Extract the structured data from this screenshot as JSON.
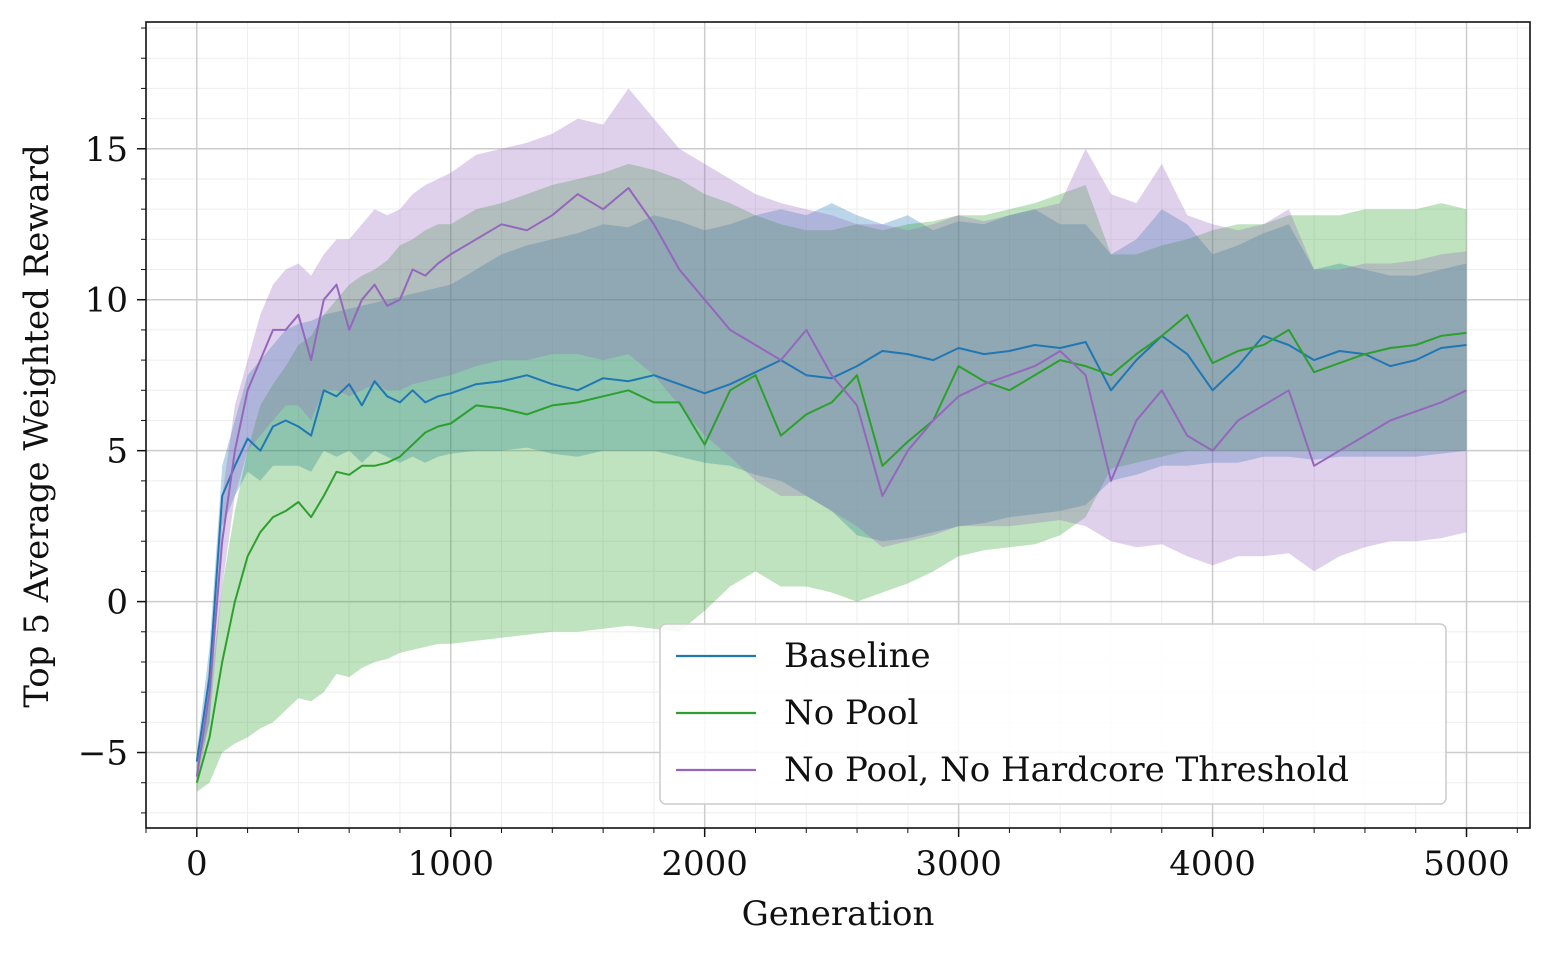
{
  "chart_data": {
    "type": "line",
    "xlabel": "Generation",
    "ylabel": "Top 5 Average Weighted Reward",
    "xlim": [
      -200,
      5250
    ],
    "ylim": [
      -7.5,
      19.2
    ],
    "xticks": [
      0,
      1000,
      2000,
      3000,
      4000,
      5000
    ],
    "xtick_labels": [
      "0",
      "1000",
      "2000",
      "3000",
      "4000",
      "5000"
    ],
    "yticks": [
      -5,
      0,
      5,
      10,
      15
    ],
    "ytick_labels": [
      "−5",
      "0",
      "5",
      "10",
      "15"
    ],
    "grid": true,
    "legend_position": "lower-right",
    "series": [
      {
        "name": "Baseline",
        "color": "#1f77b4",
        "band_color": "#1f77b4",
        "x": [
          0,
          50,
          100,
          150,
          200,
          250,
          300,
          350,
          400,
          450,
          500,
          550,
          600,
          650,
          700,
          750,
          800,
          850,
          900,
          950,
          1000,
          1100,
          1200,
          1300,
          1400,
          1500,
          1600,
          1700,
          1800,
          1900,
          2000,
          2100,
          2200,
          2300,
          2400,
          2500,
          2600,
          2700,
          2800,
          2900,
          3000,
          3100,
          3200,
          3300,
          3400,
          3500,
          3600,
          3700,
          3800,
          3900,
          4000,
          4100,
          4200,
          4300,
          4400,
          4500,
          4600,
          4700,
          4800,
          4900,
          5000
        ],
        "y": [
          -5.3,
          -2.5,
          3.5,
          4.5,
          5.4,
          5.0,
          5.8,
          6.0,
          5.8,
          5.5,
          7.0,
          6.8,
          7.2,
          6.5,
          7.3,
          6.8,
          6.6,
          7.0,
          6.6,
          6.8,
          6.9,
          7.2,
          7.3,
          7.5,
          7.2,
          7.0,
          7.4,
          7.3,
          7.5,
          7.2,
          6.9,
          7.2,
          7.6,
          8.0,
          7.5,
          7.4,
          7.8,
          8.3,
          8.2,
          8.0,
          8.4,
          8.2,
          8.3,
          8.5,
          8.4,
          8.6,
          7.0,
          8.0,
          8.8,
          8.2,
          7.0,
          7.8,
          8.8,
          8.5,
          8.0,
          8.3,
          8.2,
          7.8,
          8.0,
          8.4,
          8.5
        ],
        "upper": [
          -5.0,
          -1.5,
          4.5,
          6.0,
          7.5,
          8.0,
          8.5,
          9.0,
          9.2,
          9.3,
          9.5,
          9.6,
          9.7,
          9.8,
          9.9,
          10.0,
          10.1,
          10.2,
          10.3,
          10.4,
          10.5,
          11.0,
          11.5,
          11.8,
          12.0,
          12.2,
          12.5,
          12.4,
          12.8,
          12.6,
          12.3,
          12.5,
          12.8,
          13.0,
          12.8,
          13.2,
          12.8,
          12.5,
          12.8,
          12.3,
          12.6,
          12.5,
          12.8,
          13.0,
          12.5,
          12.5,
          11.5,
          12.0,
          13.0,
          12.5,
          11.5,
          11.8,
          12.2,
          12.5,
          11.0,
          11.2,
          11.0,
          10.8,
          10.8,
          11.0,
          11.2
        ],
        "lower": [
          -5.6,
          -4.0,
          2.5,
          3.5,
          4.3,
          4.0,
          4.5,
          4.5,
          4.5,
          4.3,
          5.0,
          4.8,
          5.0,
          4.6,
          5.0,
          4.8,
          4.6,
          4.8,
          4.6,
          4.8,
          4.9,
          5.0,
          5.0,
          5.1,
          4.9,
          4.8,
          5.0,
          5.0,
          5.0,
          4.8,
          4.6,
          4.5,
          4.2,
          4.0,
          3.5,
          3.0,
          2.2,
          2.0,
          2.1,
          2.3,
          2.5,
          2.6,
          2.8,
          2.9,
          3.0,
          3.2,
          4.0,
          4.2,
          4.5,
          4.5,
          4.6,
          4.6,
          4.8,
          4.8,
          4.7,
          4.8,
          4.8,
          4.8,
          4.8,
          4.9,
          5.0
        ]
      },
      {
        "name": "No Pool",
        "color": "#2ca02c",
        "band_color": "#2ca02c",
        "x": [
          0,
          50,
          100,
          150,
          200,
          250,
          300,
          350,
          400,
          450,
          500,
          550,
          600,
          650,
          700,
          750,
          800,
          850,
          900,
          950,
          1000,
          1100,
          1200,
          1300,
          1400,
          1500,
          1600,
          1700,
          1800,
          1900,
          2000,
          2100,
          2200,
          2300,
          2400,
          2500,
          2600,
          2700,
          2800,
          2900,
          3000,
          3100,
          3200,
          3300,
          3400,
          3500,
          3600,
          3700,
          3800,
          3900,
          4000,
          4100,
          4200,
          4300,
          4400,
          4500,
          4600,
          4700,
          4800,
          4900,
          5000
        ],
        "y": [
          -6.0,
          -4.5,
          -2.0,
          0.0,
          1.5,
          2.3,
          2.8,
          3.0,
          3.3,
          2.8,
          3.5,
          4.3,
          4.2,
          4.5,
          4.5,
          4.6,
          4.8,
          5.2,
          5.6,
          5.8,
          5.9,
          6.5,
          6.4,
          6.2,
          6.5,
          6.6,
          6.8,
          7.0,
          6.6,
          6.6,
          5.2,
          7.0,
          7.5,
          5.5,
          6.2,
          6.6,
          7.5,
          4.5,
          5.3,
          6.0,
          7.8,
          7.3,
          7.0,
          7.5,
          8.0,
          7.8,
          7.5,
          8.2,
          8.8,
          9.5,
          7.9,
          8.3,
          8.5,
          9.0,
          7.6,
          7.9,
          8.2,
          8.4,
          8.5,
          8.8,
          8.9
        ],
        "upper": [
          -5.7,
          -3.0,
          0.5,
          3.0,
          5.0,
          6.5,
          7.2,
          7.8,
          8.5,
          8.8,
          9.5,
          10.0,
          10.5,
          10.8,
          11.0,
          11.3,
          11.8,
          12.0,
          12.3,
          12.5,
          12.5,
          13.0,
          13.2,
          13.5,
          13.8,
          14.0,
          14.2,
          14.5,
          14.3,
          14.0,
          13.5,
          13.2,
          12.8,
          12.5,
          12.3,
          12.3,
          12.5,
          12.3,
          12.5,
          12.6,
          12.8,
          12.8,
          13.0,
          13.2,
          13.5,
          13.8,
          11.5,
          11.5,
          11.8,
          12.0,
          12.3,
          12.5,
          12.5,
          12.8,
          12.8,
          12.8,
          13.0,
          13.0,
          13.0,
          13.2,
          13.0
        ],
        "lower": [
          -6.3,
          -6.0,
          -5.0,
          -4.7,
          -4.5,
          -4.2,
          -4.0,
          -3.6,
          -3.2,
          -3.3,
          -3.0,
          -2.4,
          -2.5,
          -2.2,
          -2.0,
          -1.9,
          -1.7,
          -1.6,
          -1.5,
          -1.4,
          -1.4,
          -1.3,
          -1.2,
          -1.1,
          -1.0,
          -1.0,
          -0.9,
          -0.8,
          -0.9,
          -1.0,
          -0.3,
          0.5,
          1.0,
          0.5,
          0.5,
          0.3,
          0.0,
          0.3,
          0.6,
          1.0,
          1.5,
          1.7,
          1.8,
          1.9,
          2.2,
          2.8,
          4.4,
          4.6,
          4.8,
          5.0,
          5.0,
          5.0,
          5.0,
          5.0,
          5.0,
          5.0,
          5.0,
          5.0,
          5.0,
          5.0,
          5.0
        ]
      },
      {
        "name": "No Pool, No Hardcore Threshold",
        "color": "#9467bd",
        "band_color": "#9467bd",
        "x": [
          0,
          50,
          100,
          150,
          200,
          250,
          300,
          350,
          400,
          450,
          500,
          550,
          600,
          650,
          700,
          750,
          800,
          850,
          900,
          950,
          1000,
          1100,
          1200,
          1300,
          1400,
          1500,
          1600,
          1700,
          1800,
          1900,
          2000,
          2100,
          2200,
          2300,
          2400,
          2500,
          2600,
          2700,
          2800,
          2900,
          3000,
          3100,
          3200,
          3300,
          3400,
          3500,
          3600,
          3700,
          3800,
          3900,
          4000,
          4100,
          4200,
          4300,
          4400,
          4500,
          4600,
          4700,
          4800,
          4900,
          5000
        ],
        "y": [
          -5.8,
          -3.0,
          2.0,
          5.0,
          7.0,
          8.0,
          9.0,
          9.0,
          9.5,
          8.0,
          10.0,
          10.5,
          9.0,
          10.0,
          10.5,
          9.8,
          10.0,
          11.0,
          10.8,
          11.2,
          11.5,
          12.0,
          12.5,
          12.3,
          12.8,
          13.5,
          13.0,
          13.7,
          12.5,
          11.0,
          10.0,
          9.0,
          8.5,
          8.0,
          9.0,
          7.5,
          6.5,
          3.5,
          5.0,
          6.0,
          6.8,
          7.2,
          7.5,
          7.8,
          8.3,
          7.5,
          4.0,
          6.0,
          7.0,
          5.5,
          5.0,
          6.0,
          6.5,
          7.0,
          4.5,
          5.0,
          5.5,
          6.0,
          6.3,
          6.6,
          7.0
        ],
        "upper": [
          -5.5,
          -2.0,
          3.5,
          6.5,
          8.0,
          9.5,
          10.5,
          11.0,
          11.2,
          10.8,
          11.5,
          12.0,
          12.0,
          12.5,
          13.0,
          12.8,
          13.0,
          13.5,
          13.8,
          14.0,
          14.2,
          14.8,
          15.0,
          15.2,
          15.5,
          16.0,
          15.8,
          17.0,
          16.0,
          15.0,
          14.5,
          14.0,
          13.5,
          13.2,
          13.0,
          12.8,
          12.5,
          12.5,
          12.3,
          12.5,
          12.8,
          12.6,
          12.8,
          13.0,
          13.2,
          15.0,
          13.5,
          13.2,
          14.5,
          12.8,
          12.5,
          12.3,
          12.5,
          13.0,
          11.0,
          11.0,
          11.2,
          11.2,
          11.3,
          11.5,
          11.6
        ],
        "lower": [
          -6.0,
          -4.0,
          0.5,
          3.5,
          5.0,
          5.5,
          6.0,
          6.5,
          6.5,
          6.0,
          7.0,
          7.0,
          6.8,
          7.0,
          7.2,
          7.0,
          7.0,
          7.2,
          7.3,
          7.4,
          7.5,
          7.8,
          8.0,
          8.0,
          8.2,
          8.2,
          8.0,
          8.2,
          7.5,
          6.5,
          5.5,
          4.8,
          4.0,
          3.5,
          3.5,
          3.0,
          2.5,
          1.8,
          2.0,
          2.2,
          2.5,
          2.5,
          2.5,
          2.6,
          2.7,
          2.5,
          2.0,
          1.8,
          1.9,
          1.5,
          1.2,
          1.5,
          1.5,
          1.6,
          1.0,
          1.5,
          1.8,
          2.0,
          2.0,
          2.1,
          2.3
        ]
      }
    ]
  }
}
